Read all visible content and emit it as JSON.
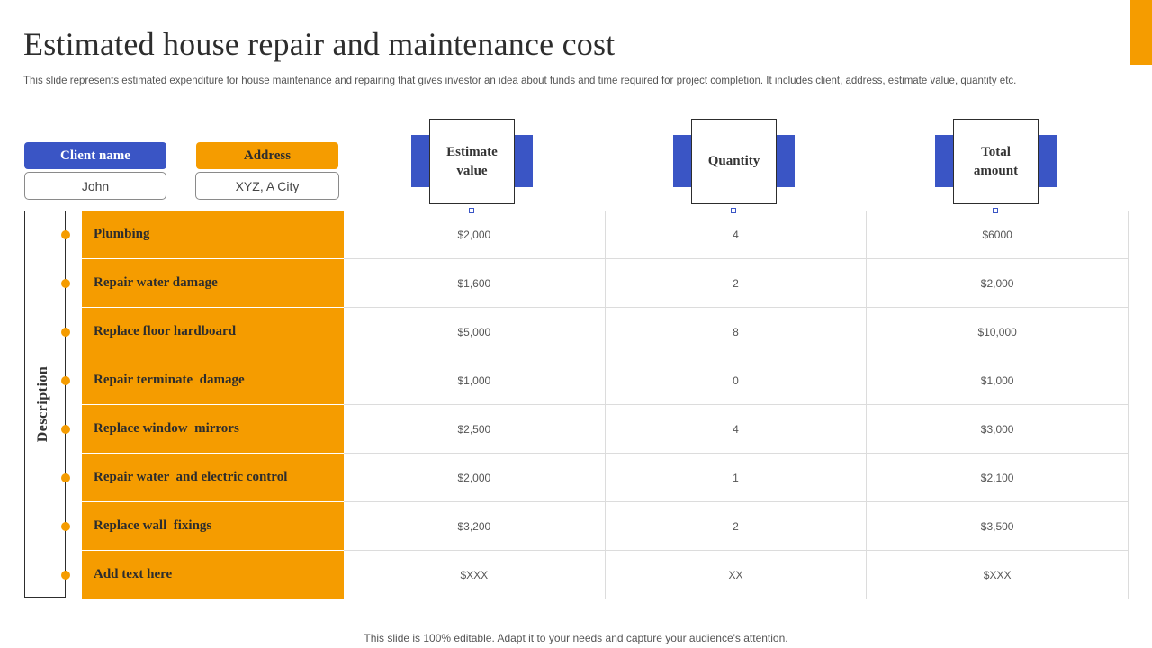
{
  "title": "Estimated house repair and maintenance cost",
  "subtitle": "This slide represents estimated expenditure for house maintenance and repairing that gives investor an idea about funds and time required for project completion. It includes client, address, estimate value, quantity etc.",
  "client": {
    "label": "Client name",
    "value": "John"
  },
  "address": {
    "label": "Address",
    "value": "XYZ,  A City"
  },
  "columns": {
    "estimate": "Estimate value",
    "quantity": "Quantity",
    "total": "Total amount"
  },
  "description_label": "Description",
  "rows": [
    {
      "item": "Plumbing",
      "estimate": "$2,000",
      "quantity": "4",
      "total": "$6000"
    },
    {
      "item": "Repair water damage",
      "estimate": "$1,600",
      "quantity": "2",
      "total": "$2,000"
    },
    {
      "item": "Replace floor hardboard",
      "estimate": "$5,000",
      "quantity": "8",
      "total": "$10,000"
    },
    {
      "item": "Repair terminate  damage",
      "estimate": "$1,000",
      "quantity": "0",
      "total": "$1,000"
    },
    {
      "item": "Replace window  mirrors",
      "estimate": "$2,500",
      "quantity": "4",
      "total": "$3,000"
    },
    {
      "item": "Repair water  and electric control",
      "estimate": "$2,000",
      "quantity": "1",
      "total": "$2,100"
    },
    {
      "item": "Replace wall  fixings",
      "estimate": "$3,200",
      "quantity": "2",
      "total": "$3,500"
    },
    {
      "item": "Add text here",
      "estimate": "$XXX",
      "quantity": "XX",
      "total": "$XXX"
    }
  ],
  "footer": "This slide is 100% editable. Adapt it to your needs and capture your audience's attention.",
  "colors": {
    "accent_orange": "#F59C00",
    "accent_blue": "#3A55C5"
  }
}
